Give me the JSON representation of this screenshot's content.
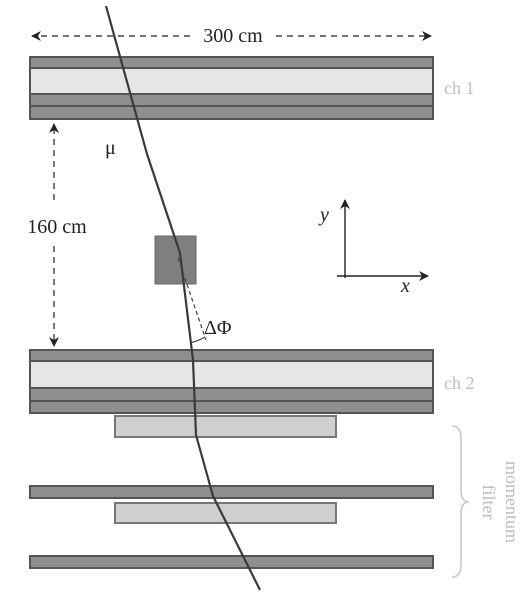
{
  "labels": {
    "width_dim": "300 cm",
    "height_dim": "160 cm",
    "muon": "μ",
    "delta_phi": "ΔΦ",
    "chamber1": "ch 1",
    "chamber2": "ch 2",
    "filter_line1": "momentum",
    "filter_line2": "filter",
    "axis_x": "x",
    "axis_y": "y"
  },
  "colors": {
    "dark_layer": "#8f8f8f",
    "light_layer": "#e6e6e6",
    "filter_plate": "#cfcfcf",
    "block": "#7f7f7f",
    "track": "#3a3a3a",
    "chamber_label": "#bdbdbd"
  }
}
